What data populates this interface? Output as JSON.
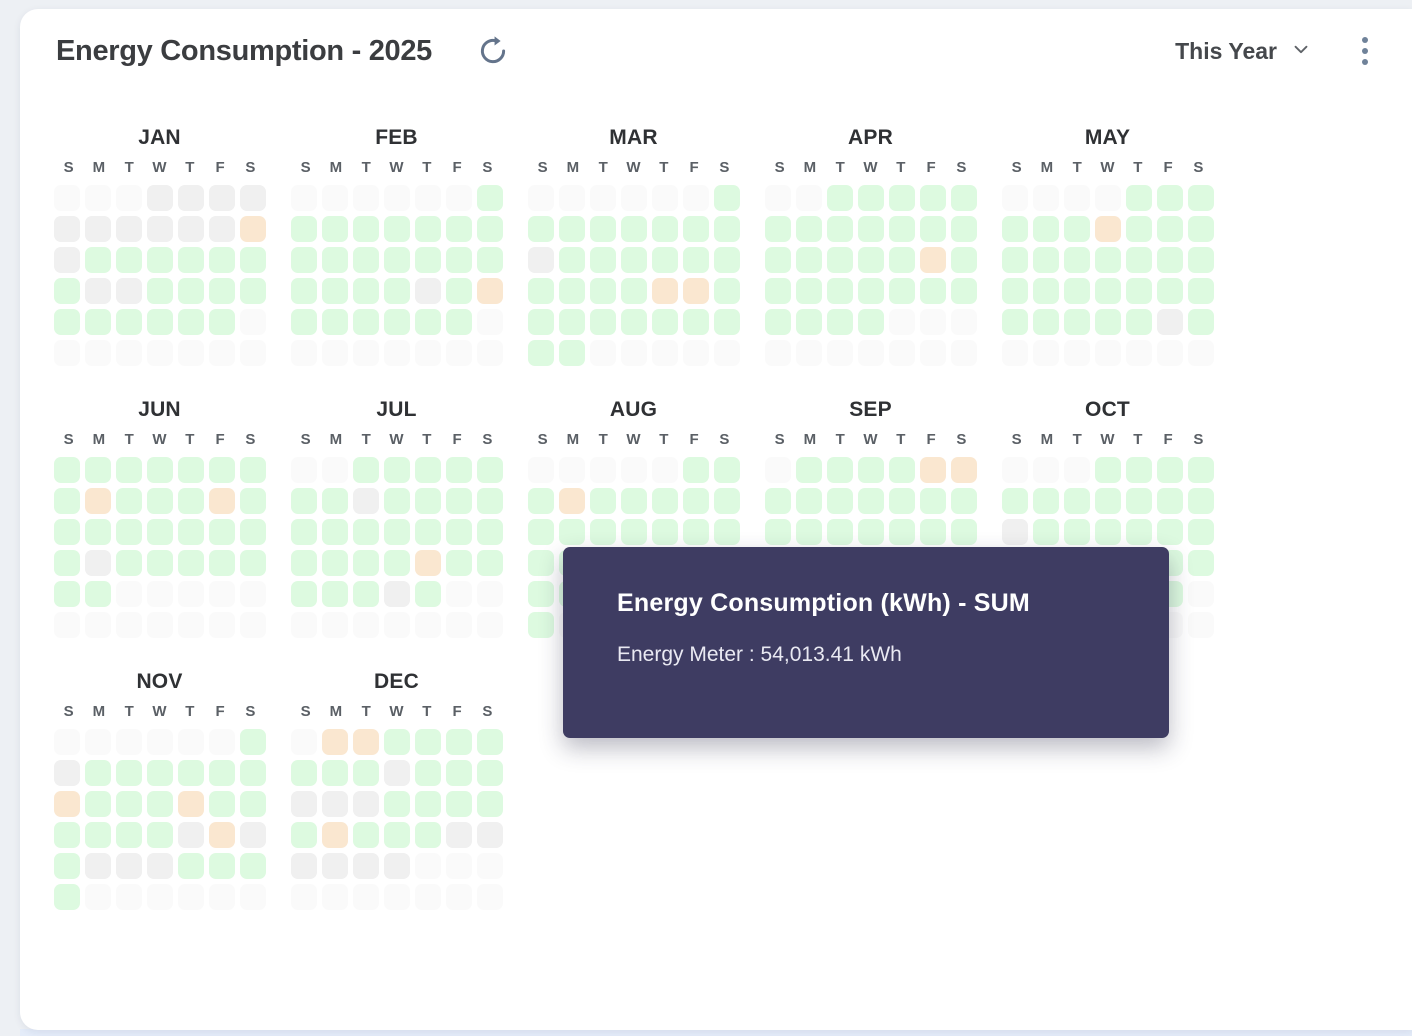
{
  "header": {
    "title": "Energy Consumption - 2025",
    "range_label": "This Year"
  },
  "icons": {
    "refresh": "refresh-icon",
    "chevron_down": "chevron-down-icon",
    "kebab_menu": "kebab-menu-icon"
  },
  "tooltip": {
    "title": "Energy Consumption (kWh) - SUM",
    "body": "Energy Meter : 54,013.41 kWh"
  },
  "colors": {
    "page_bg": "#edf0f4",
    "card_bg": "#ffffff",
    "footer_strip": "#e4ecf9",
    "cell_none": "#fafafa",
    "cell_low": "#f0f0f0",
    "cell_normal": "#ddfae0",
    "cell_high": "#fae7d0",
    "tooltip_bg": "#3e3c62"
  },
  "chart_data": {
    "type": "heatmap",
    "title": "Energy Consumption - 2025",
    "year": 2025,
    "weekdays": [
      "S",
      "M",
      "T",
      "W",
      "T",
      "F",
      "S"
    ],
    "cell_levels": {
      "E": "no-data",
      "L": "low",
      "G": "normal",
      "O": "high"
    },
    "months": [
      {
        "label": "JAN",
        "weeks": [
          "EEELLLL",
          "LLLLLLO",
          "LGGGGGG",
          "GLLGGGG",
          "GGGGGGE",
          "EEEEEEE"
        ]
      },
      {
        "label": "FEB",
        "weeks": [
          "EEEEEEG",
          "GGGGGGG",
          "GGGGGGG",
          "GGGGLGO",
          "GGGGGGE",
          "EEEEEEE"
        ]
      },
      {
        "label": "MAR",
        "weeks": [
          "EEEEEEG",
          "GGGGGGG",
          "LGGGGGG",
          "GGGGOOG",
          "GGGGGGG",
          "GGEEEEE"
        ]
      },
      {
        "label": "APR",
        "weeks": [
          "EEGGGGG",
          "GGGGGGG",
          "GGGGGOG",
          "GGGGGGG",
          "GGGGEEE",
          "EEEEEEE"
        ]
      },
      {
        "label": "MAY",
        "weeks": [
          "EEEEGGG",
          "GGGOGGG",
          "GGGGGGG",
          "GGGGGGG",
          "GGGGGLG",
          "EEEEEEE"
        ]
      },
      {
        "label": "JUN",
        "weeks": [
          "GGGGGGG",
          "GOGGGOG",
          "GGGGGGG",
          "GLGGGGG",
          "GGEEEEE",
          "EEEEEEE"
        ]
      },
      {
        "label": "JUL",
        "weeks": [
          "EEGGGGG",
          "GGLGGGG",
          "GGGGGGG",
          "GGGGOGG",
          "GGGLGEE",
          "EEEEEEE"
        ]
      },
      {
        "label": "AUG",
        "weeks": [
          "EEEEEGG",
          "GOGGGGG",
          "GGGGGGG",
          "GGGGGGG",
          "GGGGGGG",
          "GEEEEEE"
        ]
      },
      {
        "label": "SEP",
        "weeks": [
          "EGGGGOO",
          "GGGGGGG",
          "GGGGGGG",
          "GGGGGGG",
          "GGGEEEE",
          "EEEEEEE"
        ]
      },
      {
        "label": "OCT",
        "weeks": [
          "EEEGGGG",
          "GGGGGGG",
          "LGGGGGG",
          "GGGGGGG",
          "GGGGGGE",
          "EEEEEEE"
        ]
      },
      {
        "label": "NOV",
        "weeks": [
          "EEEEEEG",
          "LGGGGGG",
          "OGGGOGG",
          "GGGGLOL",
          "GLLLGGG",
          "GEEEEEE"
        ]
      },
      {
        "label": "DEC",
        "weeks": [
          "EOOGGGG",
          "GGGLGGG",
          "LLLGGGG",
          "GOGGGLL",
          "LLLLEEE",
          "EEEEEEE"
        ]
      }
    ],
    "series_name": "Energy Meter",
    "sum_label": "Energy Consumption (kWh) - SUM",
    "sum_value_kwh": 54013.41,
    "legend_position": "none",
    "grid": false
  }
}
